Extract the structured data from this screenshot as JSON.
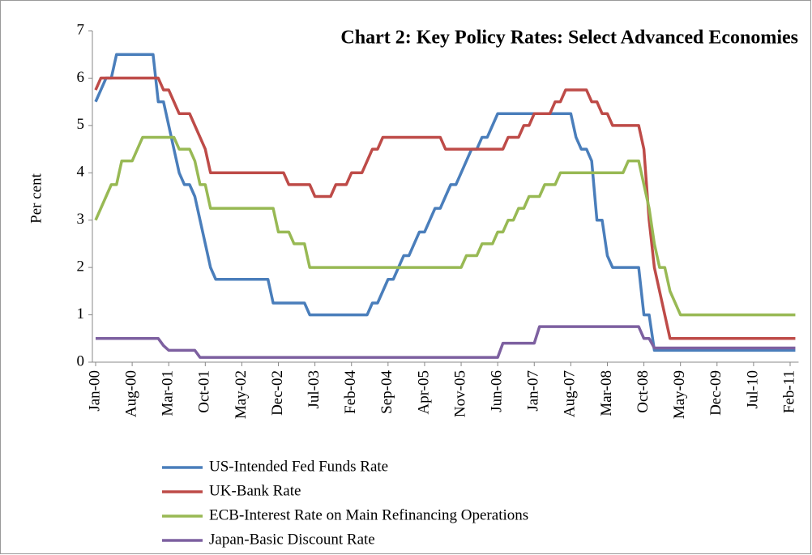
{
  "chart_data": {
    "type": "line",
    "title": "Chart 2: Key Policy Rates: Select Advanced Economies",
    "y_label": "Per cent",
    "categories": [
      "Jan-00",
      null,
      null,
      null,
      null,
      null,
      null,
      "Aug-00",
      null,
      null,
      null,
      null,
      null,
      null,
      "Mar-01",
      null,
      null,
      null,
      null,
      null,
      null,
      "Oct-01",
      null,
      null,
      null,
      null,
      null,
      null,
      "May-02",
      null,
      null,
      null,
      null,
      null,
      null,
      "Dec-02",
      null,
      null,
      null,
      null,
      null,
      null,
      "Jul-03",
      null,
      null,
      null,
      null,
      null,
      null,
      "Feb-04",
      null,
      null,
      null,
      null,
      null,
      null,
      "Sep-04",
      null,
      null,
      null,
      null,
      null,
      null,
      "Apr-05",
      null,
      null,
      null,
      null,
      null,
      null,
      "Nov-05",
      null,
      null,
      null,
      null,
      null,
      null,
      "Jun-06",
      null,
      null,
      null,
      null,
      null,
      null,
      "Jan-07",
      null,
      null,
      null,
      null,
      null,
      null,
      "Aug-07",
      null,
      null,
      null,
      null,
      null,
      null,
      "Mar-08",
      null,
      null,
      null,
      null,
      null,
      null,
      "Oct-08",
      null,
      null,
      null,
      null,
      null,
      null,
      "May-09",
      null,
      null,
      null,
      null,
      null,
      null,
      "Dec-09",
      null,
      null,
      null,
      null,
      null,
      null,
      "Jul-10",
      null,
      null,
      null,
      null,
      null,
      null,
      "Feb-11",
      null
    ],
    "series": [
      {
        "name": "US-Intended Fed Funds Rate",
        "color": "#4a7ebb",
        "values": [
          5.5,
          5.75,
          6,
          6,
          6.5,
          6.5,
          6.5,
          6.5,
          6.5,
          6.5,
          6.5,
          6.5,
          5.5,
          5.5,
          5,
          4.5,
          4,
          3.75,
          3.75,
          3.5,
          3,
          2.5,
          2,
          1.75,
          1.75,
          1.75,
          1.75,
          1.75,
          1.75,
          1.75,
          1.75,
          1.75,
          1.75,
          1.75,
          1.25,
          1.25,
          1.25,
          1.25,
          1.25,
          1.25,
          1.25,
          1,
          1,
          1,
          1,
          1,
          1,
          1,
          1,
          1,
          1,
          1,
          1,
          1.25,
          1.25,
          1.5,
          1.75,
          1.75,
          2,
          2.25,
          2.25,
          2.5,
          2.75,
          2.75,
          3,
          3.25,
          3.25,
          3.5,
          3.75,
          3.75,
          4,
          4.25,
          4.5,
          4.5,
          4.75,
          4.75,
          5,
          5.25,
          5.25,
          5.25,
          5.25,
          5.25,
          5.25,
          5.25,
          5.25,
          5.25,
          5.25,
          5.25,
          5.25,
          5.25,
          5.25,
          5.25,
          4.75,
          4.5,
          4.5,
          4.25,
          3,
          3,
          2.25,
          2,
          2,
          2,
          2,
          2,
          2,
          1,
          1,
          0.25,
          0.25,
          0.25,
          0.25,
          0.25,
          0.25,
          0.25,
          0.25,
          0.25,
          0.25,
          0.25,
          0.25,
          0.25,
          0.25,
          0.25,
          0.25,
          0.25,
          0.25,
          0.25,
          0.25,
          0.25,
          0.25,
          0.25,
          0.25,
          0.25,
          0.25,
          0.25,
          0.25
        ]
      },
      {
        "name": "UK-Bank Rate",
        "color": "#be4b48",
        "values": [
          5.75,
          6,
          6,
          6,
          6,
          6,
          6,
          6,
          6,
          6,
          6,
          6,
          6,
          5.75,
          5.75,
          5.5,
          5.25,
          5.25,
          5.25,
          5,
          4.75,
          4.5,
          4,
          4,
          4,
          4,
          4,
          4,
          4,
          4,
          4,
          4,
          4,
          4,
          4,
          4,
          4,
          3.75,
          3.75,
          3.75,
          3.75,
          3.75,
          3.5,
          3.5,
          3.5,
          3.5,
          3.75,
          3.75,
          3.75,
          4,
          4,
          4,
          4.25,
          4.5,
          4.5,
          4.75,
          4.75,
          4.75,
          4.75,
          4.75,
          4.75,
          4.75,
          4.75,
          4.75,
          4.75,
          4.75,
          4.75,
          4.5,
          4.5,
          4.5,
          4.5,
          4.5,
          4.5,
          4.5,
          4.5,
          4.5,
          4.5,
          4.5,
          4.5,
          4.75,
          4.75,
          4.75,
          5,
          5,
          5.25,
          5.25,
          5.25,
          5.25,
          5.5,
          5.5,
          5.75,
          5.75,
          5.75,
          5.75,
          5.75,
          5.5,
          5.5,
          5.25,
          5.25,
          5,
          5,
          5,
          5,
          5,
          5,
          4.5,
          3,
          2,
          1.5,
          1,
          0.5,
          0.5,
          0.5,
          0.5,
          0.5,
          0.5,
          0.5,
          0.5,
          0.5,
          0.5,
          0.5,
          0.5,
          0.5,
          0.5,
          0.5,
          0.5,
          0.5,
          0.5,
          0.5,
          0.5,
          0.5,
          0.5,
          0.5,
          0.5,
          0.5
        ]
      },
      {
        "name": "ECB-Interest Rate on Main Refinancing Operations",
        "color": "#98b954",
        "values": [
          3,
          3.25,
          3.5,
          3.75,
          3.75,
          4.25,
          4.25,
          4.25,
          4.5,
          4.75,
          4.75,
          4.75,
          4.75,
          4.75,
          4.75,
          4.75,
          4.5,
          4.5,
          4.5,
          4.25,
          3.75,
          3.75,
          3.25,
          3.25,
          3.25,
          3.25,
          3.25,
          3.25,
          3.25,
          3.25,
          3.25,
          3.25,
          3.25,
          3.25,
          3.25,
          2.75,
          2.75,
          2.75,
          2.5,
          2.5,
          2.5,
          2,
          2,
          2,
          2,
          2,
          2,
          2,
          2,
          2,
          2,
          2,
          2,
          2,
          2,
          2,
          2,
          2,
          2,
          2,
          2,
          2,
          2,
          2,
          2,
          2,
          2,
          2,
          2,
          2,
          2,
          2.25,
          2.25,
          2.25,
          2.5,
          2.5,
          2.5,
          2.75,
          2.75,
          3,
          3,
          3.25,
          3.25,
          3.5,
          3.5,
          3.5,
          3.75,
          3.75,
          3.75,
          4,
          4,
          4,
          4,
          4,
          4,
          4,
          4,
          4,
          4,
          4,
          4,
          4,
          4.25,
          4.25,
          4.25,
          3.75,
          3.25,
          2.5,
          2,
          2,
          1.5,
          1.25,
          1,
          1,
          1,
          1,
          1,
          1,
          1,
          1,
          1,
          1,
          1,
          1,
          1,
          1,
          1,
          1,
          1,
          1,
          1,
          1,
          1,
          1,
          1
        ]
      },
      {
        "name": "Japan-Basic Discount Rate",
        "color": "#7d60a0",
        "values": [
          0.5,
          0.5,
          0.5,
          0.5,
          0.5,
          0.5,
          0.5,
          0.5,
          0.5,
          0.5,
          0.5,
          0.5,
          0.5,
          0.35,
          0.25,
          0.25,
          0.25,
          0.25,
          0.25,
          0.25,
          0.1,
          0.1,
          0.1,
          0.1,
          0.1,
          0.1,
          0.1,
          0.1,
          0.1,
          0.1,
          0.1,
          0.1,
          0.1,
          0.1,
          0.1,
          0.1,
          0.1,
          0.1,
          0.1,
          0.1,
          0.1,
          0.1,
          0.1,
          0.1,
          0.1,
          0.1,
          0.1,
          0.1,
          0.1,
          0.1,
          0.1,
          0.1,
          0.1,
          0.1,
          0.1,
          0.1,
          0.1,
          0.1,
          0.1,
          0.1,
          0.1,
          0.1,
          0.1,
          0.1,
          0.1,
          0.1,
          0.1,
          0.1,
          0.1,
          0.1,
          0.1,
          0.1,
          0.1,
          0.1,
          0.1,
          0.1,
          0.1,
          0.1,
          0.4,
          0.4,
          0.4,
          0.4,
          0.4,
          0.4,
          0.4,
          0.75,
          0.75,
          0.75,
          0.75,
          0.75,
          0.75,
          0.75,
          0.75,
          0.75,
          0.75,
          0.75,
          0.75,
          0.75,
          0.75,
          0.75,
          0.75,
          0.75,
          0.75,
          0.75,
          0.75,
          0.5,
          0.5,
          0.3,
          0.3,
          0.3,
          0.3,
          0.3,
          0.3,
          0.3,
          0.3,
          0.3,
          0.3,
          0.3,
          0.3,
          0.3,
          0.3,
          0.3,
          0.3,
          0.3,
          0.3,
          0.3,
          0.3,
          0.3,
          0.3,
          0.3,
          0.3,
          0.3,
          0.3,
          0.3,
          0.3
        ]
      }
    ],
    "ylim": [
      0,
      7
    ],
    "yticks": [
      0,
      1,
      2,
      3,
      4,
      5,
      6,
      7
    ],
    "grid": false,
    "legend": "bottom"
  }
}
